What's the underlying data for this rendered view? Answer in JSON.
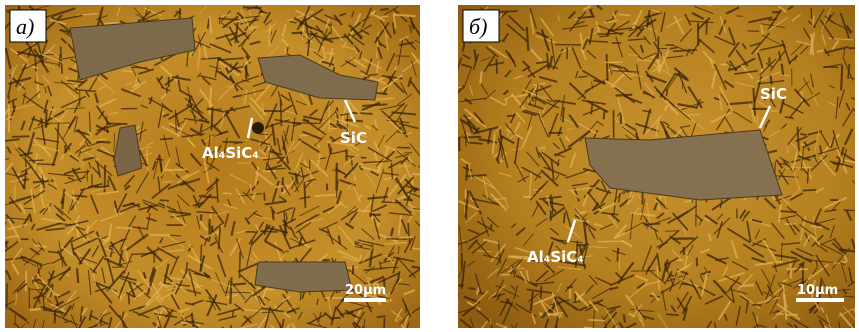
{
  "panels": [
    {
      "label": "а)",
      "annotations": [
        "Al₄SiC₄",
        "SiC"
      ],
      "scale_bar": "20μm"
    },
    {
      "label": "б)",
      "annotations": [
        "SiC",
        "Al₄SiC₄"
      ],
      "scale_bar": "10μm"
    }
  ]
}
